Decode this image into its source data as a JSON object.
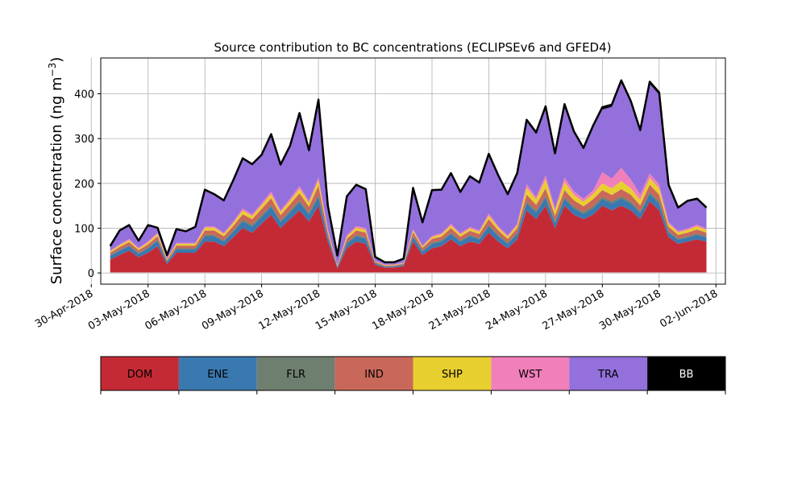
{
  "chart_data": {
    "type": "area",
    "title": "Source contribution to BC concentrations (ECLIPSEv6 and GFED4)",
    "ylabel": "Surface concentration (ng m",
    "ylabel_sup": "−3",
    "ylabel_close": ")",
    "xlabel": "",
    "ylim": [
      -25,
      480
    ],
    "xlim": [
      "2018-04-30T12:00",
      "2018-06-02T12:00"
    ],
    "grid": true,
    "stacked": true,
    "x_tick_labels": [
      "30-Apr-2018",
      "03-May-2018",
      "06-May-2018",
      "09-May-2018",
      "12-May-2018",
      "15-May-2018",
      "18-May-2018",
      "21-May-2018",
      "24-May-2018",
      "27-May-2018",
      "30-May-2018",
      "02-Jun-2018"
    ],
    "x_tick_dates": [
      "2018-04-30",
      "2018-05-03",
      "2018-05-06",
      "2018-05-09",
      "2018-05-12",
      "2018-05-15",
      "2018-05-18",
      "2018-05-21",
      "2018-05-24",
      "2018-05-27",
      "2018-05-30",
      "2018-06-02"
    ],
    "y_ticks": [
      0,
      100,
      200,
      300,
      400
    ],
    "x": [
      "2018-05-01",
      "2018-05-01T12:00",
      "2018-05-02",
      "2018-05-02T12:00",
      "2018-05-03",
      "2018-05-03T12:00",
      "2018-05-04",
      "2018-05-04T12:00",
      "2018-05-05",
      "2018-05-05T12:00",
      "2018-05-06",
      "2018-05-06T12:00",
      "2018-05-07",
      "2018-05-07T12:00",
      "2018-05-08",
      "2018-05-08T12:00",
      "2018-05-09",
      "2018-05-09T12:00",
      "2018-05-10",
      "2018-05-10T12:00",
      "2018-05-11",
      "2018-05-11T12:00",
      "2018-05-12",
      "2018-05-12T12:00",
      "2018-05-13",
      "2018-05-13T12:00",
      "2018-05-14",
      "2018-05-14T12:00",
      "2018-05-15",
      "2018-05-15T12:00",
      "2018-05-16",
      "2018-05-16T12:00",
      "2018-05-17",
      "2018-05-17T12:00",
      "2018-05-18",
      "2018-05-18T12:00",
      "2018-05-19",
      "2018-05-19T12:00",
      "2018-05-20",
      "2018-05-20T12:00",
      "2018-05-21",
      "2018-05-21T12:00",
      "2018-05-22",
      "2018-05-22T12:00",
      "2018-05-23",
      "2018-05-23T12:00",
      "2018-05-24",
      "2018-05-24T12:00",
      "2018-05-25",
      "2018-05-25T12:00",
      "2018-05-26",
      "2018-05-26T12:00",
      "2018-05-27",
      "2018-05-27T12:00",
      "2018-05-28",
      "2018-05-28T12:00",
      "2018-05-29",
      "2018-05-29T12:00",
      "2018-05-30",
      "2018-05-30T12:00",
      "2018-05-31",
      "2018-05-31T12:00",
      "2018-06-01",
      "2018-06-01T12:00"
    ],
    "series": [
      {
        "name": "DOM",
        "color": "#c42a35",
        "values": [
          30,
          40,
          50,
          35,
          45,
          60,
          20,
          45,
          45,
          45,
          70,
          70,
          60,
          80,
          100,
          90,
          110,
          130,
          100,
          120,
          140,
          115,
          150,
          70,
          10,
          55,
          70,
          65,
          18,
          12,
          12,
          15,
          70,
          40,
          55,
          60,
          75,
          60,
          70,
          65,
          90,
          70,
          55,
          75,
          140,
          120,
          150,
          100,
          150,
          130,
          120,
          130,
          150,
          140,
          150,
          140,
          120,
          160,
          140,
          80,
          65,
          70,
          75,
          70
        ]
      },
      {
        "name": "ENE",
        "color": "#3a78b0",
        "values": [
          8,
          10,
          10,
          8,
          10,
          12,
          5,
          8,
          8,
          8,
          12,
          12,
          10,
          12,
          15,
          14,
          15,
          18,
          14,
          15,
          18,
          16,
          20,
          10,
          3,
          10,
          12,
          12,
          3,
          2,
          2,
          3,
          10,
          8,
          10,
          10,
          12,
          10,
          12,
          10,
          14,
          12,
          10,
          12,
          15,
          15,
          18,
          12,
          15,
          14,
          12,
          14,
          15,
          15,
          16,
          15,
          14,
          16,
          15,
          10,
          9,
          9,
          10,
          9
        ]
      },
      {
        "name": "FLR",
        "color": "#6f7f6f",
        "values": [
          2,
          2,
          2,
          2,
          2,
          2,
          1,
          2,
          2,
          2,
          3,
          3,
          3,
          3,
          4,
          4,
          4,
          4,
          3,
          4,
          4,
          4,
          5,
          2,
          1,
          3,
          3,
          3,
          1,
          1,
          1,
          1,
          3,
          2,
          3,
          3,
          3,
          3,
          3,
          3,
          4,
          3,
          3,
          3,
          5,
          4,
          5,
          4,
          5,
          4,
          4,
          5,
          5,
          5,
          5,
          5,
          4,
          5,
          5,
          3,
          3,
          3,
          3,
          3
        ]
      },
      {
        "name": "IND",
        "color": "#c9685a",
        "values": [
          5,
          6,
          7,
          6,
          7,
          8,
          3,
          6,
          6,
          6,
          10,
          10,
          9,
          10,
          12,
          12,
          14,
          15,
          12,
          14,
          16,
          13,
          20,
          8,
          2,
          8,
          10,
          10,
          3,
          2,
          2,
          2,
          8,
          6,
          8,
          8,
          10,
          8,
          9,
          9,
          12,
          10,
          8,
          10,
          15,
          13,
          16,
          12,
          15,
          14,
          13,
          15,
          15,
          14,
          16,
          15,
          13,
          16,
          15,
          10,
          8,
          8,
          9,
          8
        ]
      },
      {
        "name": "SHP",
        "color": "#e7cf30",
        "values": [
          3,
          4,
          4,
          3,
          4,
          5,
          2,
          4,
          4,
          4,
          6,
          6,
          5,
          6,
          8,
          7,
          8,
          9,
          7,
          8,
          10,
          8,
          12,
          5,
          1,
          5,
          6,
          6,
          1,
          1,
          1,
          1,
          4,
          3,
          4,
          5,
          6,
          5,
          5,
          5,
          8,
          6,
          5,
          6,
          15,
          12,
          20,
          10,
          18,
          12,
          10,
          12,
          15,
          15,
          18,
          14,
          12,
          15,
          14,
          7,
          6,
          6,
          7,
          6
        ]
      },
      {
        "name": "WST",
        "color": "#f07fba",
        "values": [
          2,
          2,
          3,
          2,
          3,
          3,
          1,
          2,
          2,
          2,
          3,
          3,
          3,
          4,
          5,
          4,
          5,
          6,
          4,
          5,
          6,
          5,
          7,
          3,
          1,
          3,
          4,
          4,
          1,
          1,
          1,
          1,
          3,
          2,
          3,
          3,
          4,
          3,
          4,
          3,
          5,
          4,
          3,
          4,
          8,
          6,
          9,
          6,
          10,
          8,
          7,
          8,
          25,
          22,
          30,
          20,
          12,
          10,
          9,
          4,
          3,
          3,
          4,
          3
        ]
      },
      {
        "name": "TRA",
        "color": "#9370db",
        "values": [
          10,
          30,
          30,
          15,
          35,
          10,
          7,
          30,
          25,
          35,
          80,
          70,
          70,
          90,
          110,
          110,
          105,
          125,
          100,
          115,
          160,
          110,
          170,
          50,
          20,
          85,
          90,
          85,
          8,
          4,
          4,
          8,
          90,
          50,
          100,
          95,
          110,
          90,
          110,
          105,
          130,
          110,
          90,
          110,
          140,
          140,
          150,
          120,
          160,
          130,
          110,
          140,
          140,
          160,
          190,
          170,
          140,
          200,
          200,
          80,
          50,
          60,
          55,
          45
        ]
      },
      {
        "name": "BB",
        "color": "#000000",
        "values": [
          0,
          1,
          1,
          1,
          1,
          1,
          1,
          1,
          1,
          1,
          2,
          2,
          2,
          2,
          2,
          2,
          3,
          3,
          2,
          3,
          3,
          3,
          3,
          2,
          1,
          2,
          2,
          2,
          1,
          1,
          1,
          1,
          2,
          2,
          2,
          2,
          3,
          2,
          3,
          2,
          3,
          3,
          2,
          3,
          4,
          4,
          4,
          3,
          4,
          4,
          3,
          4,
          5,
          5,
          5,
          5,
          4,
          5,
          5,
          3,
          2,
          2,
          3,
          2
        ]
      }
    ]
  }
}
